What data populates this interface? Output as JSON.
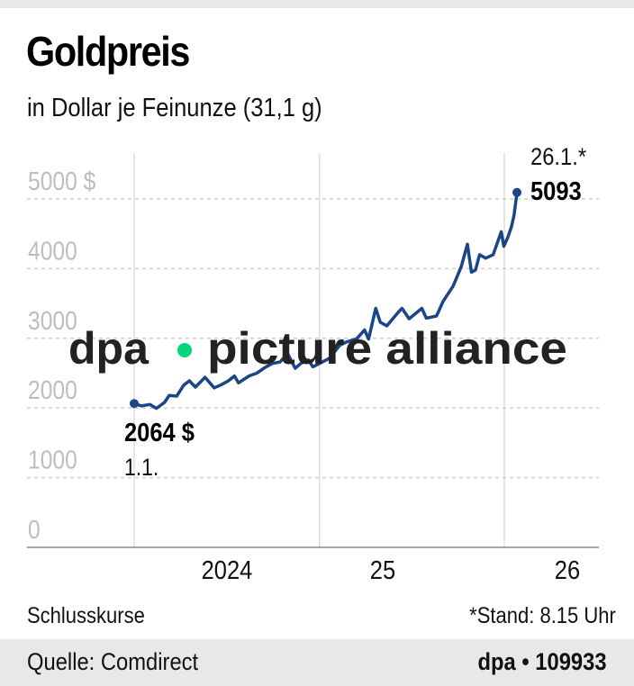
{
  "chart_data": {
    "type": "line",
    "title": "Goldpreis",
    "subtitle": "in Dollar je Feinunze (31,1 g)",
    "ylim": [
      0,
      5000
    ],
    "yticks": [
      0,
      1000,
      2000,
      3000,
      4000,
      5000
    ],
    "ytick_labels": [
      "0",
      "1000",
      "2000",
      "3000",
      "4000",
      "5000 $"
    ],
    "xticks": [
      "2024-01-01",
      "2025-01-01",
      "2026-01-01"
    ],
    "xtick_labels": [
      "2024",
      "25",
      "26"
    ],
    "grid": "horizontal dashed, vertical solid at year boundaries",
    "line_color": "#1a4586",
    "series": [
      {
        "points": [
          [
            "2024-01-01",
            2064
          ],
          [
            "2024-01-15",
            2030
          ],
          [
            "2024-02-01",
            2050
          ],
          [
            "2024-02-14",
            1995
          ],
          [
            "2024-03-01",
            2080
          ],
          [
            "2024-03-10",
            2180
          ],
          [
            "2024-03-25",
            2170
          ],
          [
            "2024-04-08",
            2330
          ],
          [
            "2024-04-19",
            2390
          ],
          [
            "2024-05-01",
            2300
          ],
          [
            "2024-05-20",
            2440
          ],
          [
            "2024-06-07",
            2290
          ],
          [
            "2024-06-20",
            2330
          ],
          [
            "2024-07-05",
            2390
          ],
          [
            "2024-07-17",
            2460
          ],
          [
            "2024-07-25",
            2360
          ],
          [
            "2024-08-15",
            2460
          ],
          [
            "2024-08-30",
            2500
          ],
          [
            "2024-09-15",
            2580
          ],
          [
            "2024-09-30",
            2640
          ],
          [
            "2024-10-15",
            2660
          ],
          [
            "2024-10-30",
            2780
          ],
          [
            "2024-11-14",
            2570
          ],
          [
            "2024-11-25",
            2640
          ],
          [
            "2024-12-10",
            2690
          ],
          [
            "2024-12-19",
            2590
          ],
          [
            "2025-01-01",
            2640
          ],
          [
            "2025-01-20",
            2710
          ],
          [
            "2025-02-10",
            2900
          ],
          [
            "2025-02-24",
            2950
          ],
          [
            "2025-03-15",
            2990
          ],
          [
            "2025-03-31",
            3120
          ],
          [
            "2025-04-08",
            2990
          ],
          [
            "2025-04-22",
            3430
          ],
          [
            "2025-05-01",
            3230
          ],
          [
            "2025-05-14",
            3180
          ],
          [
            "2025-06-05",
            3370
          ],
          [
            "2025-06-13",
            3430
          ],
          [
            "2025-06-27",
            3280
          ],
          [
            "2025-07-22",
            3430
          ],
          [
            "2025-07-31",
            3290
          ],
          [
            "2025-08-20",
            3320
          ],
          [
            "2025-09-02",
            3530
          ],
          [
            "2025-09-22",
            3750
          ],
          [
            "2025-10-08",
            4030
          ],
          [
            "2025-10-20",
            4350
          ],
          [
            "2025-10-28",
            3950
          ],
          [
            "2025-11-05",
            3980
          ],
          [
            "2025-11-13",
            4200
          ],
          [
            "2025-11-25",
            4150
          ],
          [
            "2025-12-10",
            4200
          ],
          [
            "2025-12-26",
            4530
          ],
          [
            "2025-12-31",
            4320
          ],
          [
            "2026-01-08",
            4450
          ],
          [
            "2026-01-15",
            4600
          ],
          [
            "2026-01-20",
            4760
          ],
          [
            "2026-01-26",
            5093
          ]
        ]
      }
    ],
    "annotations": {
      "start_value": "2064 $",
      "start_date": "1.1.",
      "end_date": "26.1.*",
      "end_value": "5093"
    }
  },
  "notes": {
    "left": "Schlusskurse",
    "right": "*Stand: 8.15 Uhr"
  },
  "footer": {
    "source": "Quelle: Comdirect",
    "credit": "dpa • 109933"
  },
  "watermark": {
    "text_left": "dpa",
    "text_right": "picture alliance",
    "dot_color": "#00d67a"
  }
}
